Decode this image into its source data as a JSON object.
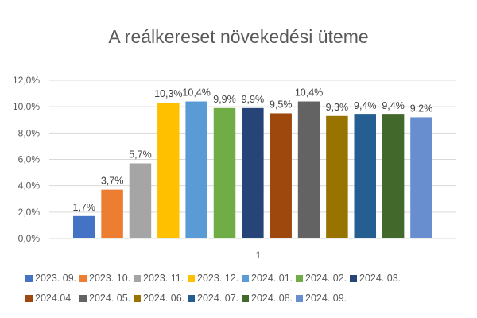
{
  "chart_data": {
    "type": "bar",
    "title": "A reálkereset növekedési üteme",
    "categories": [
      "1"
    ],
    "ylim": [
      0,
      12
    ],
    "yticks": [
      "0,0%",
      "2,0%",
      "4,0%",
      "6,0%",
      "8,0%",
      "10,0%",
      "12,0%"
    ],
    "grid": true,
    "legend_position": "bottom",
    "series": [
      {
        "name": "2023. 09.",
        "value": 1.7,
        "label": "1,7%",
        "color": "#4472C4"
      },
      {
        "name": "2023. 10.",
        "value": 3.7,
        "label": "3,7%",
        "color": "#ED7D31"
      },
      {
        "name": "2023. 11.",
        "value": 5.7,
        "label": "5,7%",
        "color": "#A5A5A5"
      },
      {
        "name": "2023. 12.",
        "value": 10.3,
        "label": "10,3%",
        "color": "#FFC000"
      },
      {
        "name": "2024. 01.",
        "value": 10.4,
        "label": "10,4%",
        "color": "#5B9BD5"
      },
      {
        "name": "2024. 02.",
        "value": 9.9,
        "label": "9,9%",
        "color": "#70AD47"
      },
      {
        "name": "2024. 03.",
        "value": 9.9,
        "label": "9,9%",
        "color": "#264478"
      },
      {
        "name": "2024.04",
        "value": 9.5,
        "label": "9,5%",
        "color": "#9E480E"
      },
      {
        "name": "2024. 05.",
        "value": 10.4,
        "label": "10,4%",
        "color": "#636363"
      },
      {
        "name": "2024. 06.",
        "value": 9.3,
        "label": "9,3%",
        "color": "#997300"
      },
      {
        "name": "2024. 07.",
        "value": 9.4,
        "label": "9,4%",
        "color": "#255E91"
      },
      {
        "name": "2024. 08.",
        "value": 9.4,
        "label": "9,4%",
        "color": "#43682B"
      },
      {
        "name": "2024. 09.",
        "value": 9.2,
        "label": "9,2%",
        "color": "#698ED0"
      }
    ]
  }
}
